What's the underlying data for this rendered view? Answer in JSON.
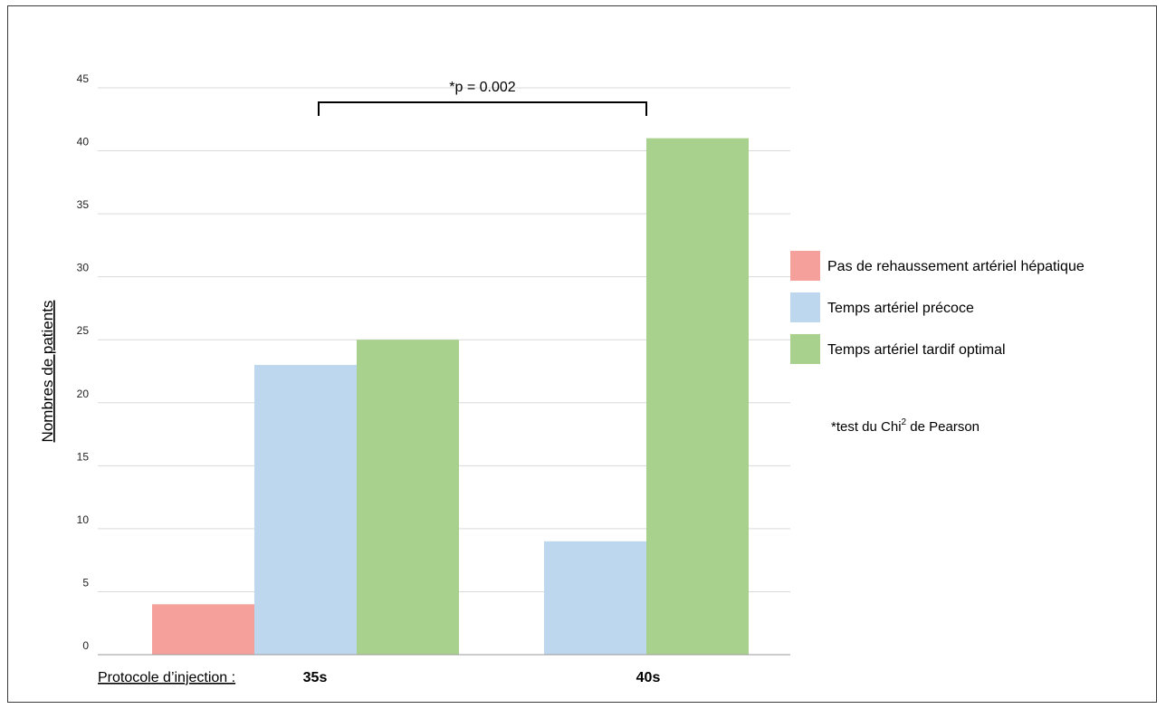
{
  "chart_data": {
    "type": "bar",
    "categories": [
      "35s",
      "40s"
    ],
    "series": [
      {
        "name": "Pas de rehaussement artériel hépatique",
        "values": [
          4,
          0
        ],
        "color": "#f5a09a"
      },
      {
        "name": "Temps artériel précoce",
        "values": [
          23,
          9
        ],
        "color": "#bdd7ee"
      },
      {
        "name": "Temps artériel tardif optimal",
        "values": [
          25,
          41
        ],
        "color": "#a9d18e"
      }
    ],
    "title": "",
    "xlabel": "Protocole d’injection :",
    "ylabel": "Nombres de patients",
    "ylim": [
      0,
      45
    ],
    "yticks": [
      0,
      5,
      10,
      15,
      20,
      25,
      30,
      35,
      40,
      45
    ],
    "grid": true,
    "legend_position": "right",
    "significance": {
      "label": "*p = 0.002",
      "from_category": "35s",
      "to_category": "40s"
    },
    "footnote": {
      "prefix": "*test du Chi",
      "superscript": "2",
      "suffix": " de Pearson"
    }
  }
}
